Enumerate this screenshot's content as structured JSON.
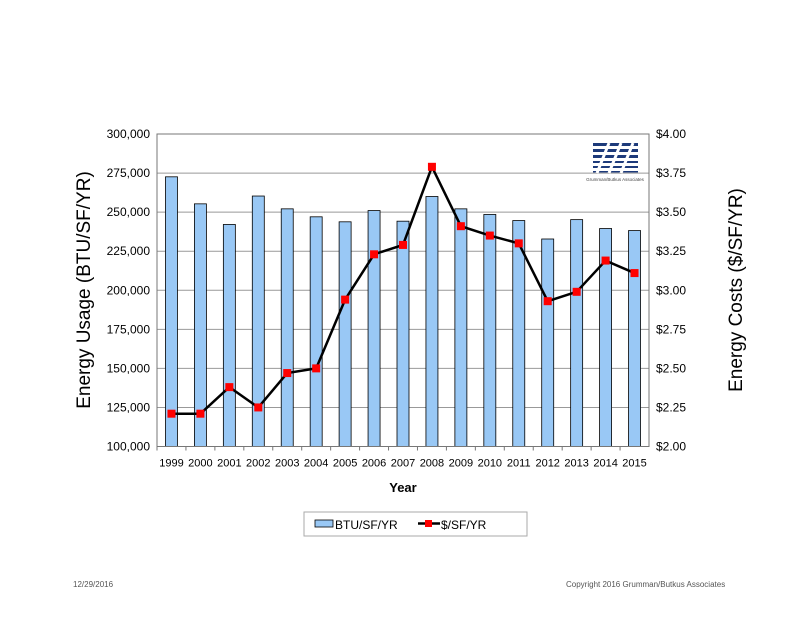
{
  "chart_data": {
    "type": "bar+line",
    "xlabel": "Year",
    "ylabel_left": "Energy Usage (BTU/SF/YR)",
    "ylabel_right": "Energy Costs ($/SF/YR)",
    "ylim_left": [
      100000,
      300000
    ],
    "ylim_right": [
      2.0,
      4.0
    ],
    "yticks_left": [
      "100,000",
      "125,000",
      "150,000",
      "175,000",
      "200,000",
      "225,000",
      "250,000",
      "275,000",
      "300,000"
    ],
    "yticks_right": [
      "$2.00",
      "$2.25",
      "$2.50",
      "$2.75",
      "$3.00",
      "$3.25",
      "$3.50",
      "$3.75",
      "$4.00"
    ],
    "grid": true,
    "legend_position": "bottom",
    "categories": [
      "1999",
      "2000",
      "2001",
      "2002",
      "2003",
      "2004",
      "2005",
      "2006",
      "2007",
      "2008",
      "2009",
      "2010",
      "2011",
      "2012",
      "2013",
      "2014",
      "2015"
    ],
    "series": [
      {
        "name": "BTU/SF/YR",
        "type": "bar",
        "axis": "left",
        "color": "#99c8f5",
        "values": [
          272600,
          255300,
          242100,
          260300,
          252100,
          247000,
          243800,
          251000,
          244200,
          260000,
          252100,
          248500,
          244600,
          232800,
          245200,
          239500,
          238200
        ]
      },
      {
        "name": "$/SF/YR",
        "type": "line",
        "axis": "right",
        "color": "#000000",
        "marker_color": "#ff0000",
        "values": [
          2.21,
          2.21,
          2.38,
          2.25,
          2.47,
          2.5,
          2.94,
          3.23,
          3.29,
          3.79,
          3.41,
          3.35,
          3.3,
          2.93,
          2.99,
          3.19,
          3.11
        ]
      }
    ]
  },
  "logo": {
    "text": "Grumman/Butkus Associates"
  },
  "footer": {
    "date": "12/29/2016",
    "copyright": "Copyright 2016 Grumman/Butkus Associates"
  }
}
